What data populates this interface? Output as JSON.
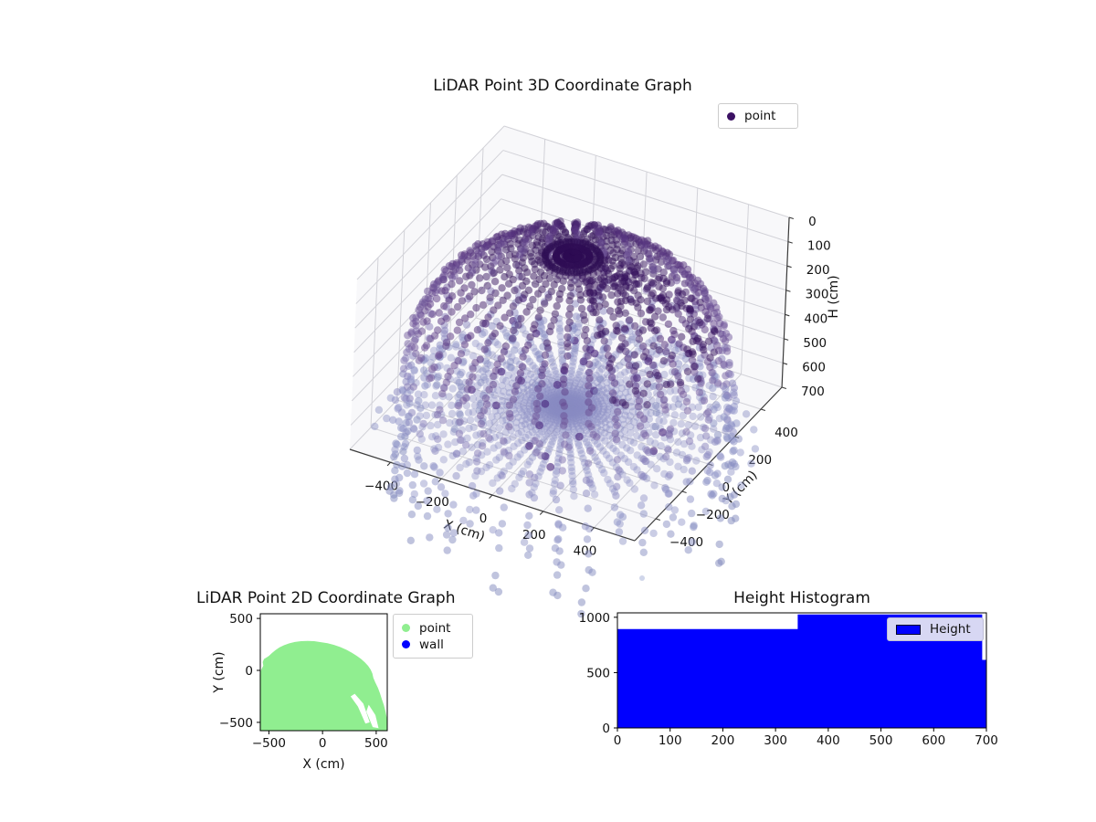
{
  "figure": {
    "background": "#ffffff"
  },
  "chart_data": [
    {
      "type": "scatter3d",
      "title": "LiDAR Point 3D Coordinate Graph",
      "xlabel": "X (cm)",
      "ylabel": "Y (cm)",
      "zlabel": "H (cm)",
      "xticks": [
        -400,
        -200,
        0,
        200,
        400
      ],
      "yticks": [
        400,
        200,
        0,
        -200,
        -400
      ],
      "zticks": [
        0,
        100,
        200,
        300,
        400,
        500,
        600,
        700
      ],
      "xlim": [
        -560,
        560
      ],
      "ylim": [
        -560,
        560
      ],
      "zlim": [
        0,
        700
      ],
      "zaxis_direction": "0 at top, 700 at bottom",
      "legend": [
        {
          "label": "point",
          "color": "#3b1163"
        }
      ],
      "grid": true,
      "pane_color": "#f4f4f6",
      "grid_color": "#d2d2d8",
      "cloud": {
        "description": "spherical LiDAR scan: dark dome cap on top, dotted wall meridian strips on sides, concentric floor rings with radial rays converging at center",
        "sphere_radius_cm": 560,
        "dome": {
          "phi_min_deg": 12,
          "phi_max_deg": 90,
          "phi_step_deg": 3,
          "azimuth_count": 36,
          "h_top": 30,
          "h_span": 440
        },
        "cap_extra_rings_deg": [
          80,
          84,
          88
        ],
        "walls": {
          "azimuth_count": 36,
          "rows": 12,
          "h_start": 380,
          "h_span": 590,
          "r_base": 552,
          "r_flare": 45
        },
        "floor": {
          "ring_count": 30,
          "azimuth_count": 48,
          "radius_exponent": 1.75,
          "plane_h": 650,
          "max_radius": 560
        },
        "outer_rays": {
          "azimuth_count": 36,
          "radii": [
            585,
            625,
            665
          ]
        },
        "outlier_count": 28,
        "colormap_h_rgb": [
          [
            30,
            [
              45,
              12,
              83
            ]
          ],
          [
            220,
            [
              84,
              48,
              125
            ]
          ],
          [
            400,
            [
              116,
              92,
              158
            ]
          ],
          [
            560,
            [
              133,
              125,
              185
            ]
          ],
          [
            700,
            [
              141,
              146,
              199
            ]
          ],
          [
            1050,
            [
              128,
              136,
              188
            ]
          ]
        ],
        "dark_patch_color": "#34105c",
        "alpha": {
          "dome": 0.5,
          "floor": 0.38,
          "walls": 0.5
        },
        "point_radius_px": 4.2
      }
    },
    {
      "type": "scatter2d",
      "title": "LiDAR Point 2D Coordinate Graph",
      "xlabel": "X (cm)",
      "ylabel": "Y (cm)",
      "xticks": [
        -500,
        0,
        500
      ],
      "yticks": [
        500,
        0,
        -500
      ],
      "xlim": [
        -580,
        603
      ],
      "ylim": [
        -580,
        545
      ],
      "legend": [
        {
          "label": "point",
          "color": "#90ee90"
        },
        {
          "label": "wall",
          "color": "#0000ff"
        }
      ],
      "point_color": "#90ee90",
      "blob_outline": [
        [
          -585,
          -580
        ],
        [
          -585,
          -40
        ],
        [
          -570,
          10
        ],
        [
          -552,
          45
        ],
        [
          -558,
          80
        ],
        [
          -545,
          110
        ],
        [
          -520,
          125
        ],
        [
          -500,
          140
        ],
        [
          -470,
          168
        ],
        [
          -438,
          196
        ],
        [
          -400,
          222
        ],
        [
          -358,
          243
        ],
        [
          -310,
          260
        ],
        [
          -258,
          273
        ],
        [
          -200,
          281
        ],
        [
          -140,
          284
        ],
        [
          -78,
          281
        ],
        [
          -16,
          272
        ],
        [
          46,
          261
        ],
        [
          108,
          245
        ],
        [
          166,
          224
        ],
        [
          222,
          199
        ],
        [
          272,
          171
        ],
        [
          318,
          141
        ],
        [
          358,
          111
        ],
        [
          394,
          78
        ],
        [
          424,
          44
        ],
        [
          448,
          8
        ],
        [
          464,
          -30
        ],
        [
          474,
          -72
        ],
        [
          492,
          -118
        ],
        [
          516,
          -168
        ],
        [
          536,
          -222
        ],
        [
          553,
          -278
        ],
        [
          571,
          -332
        ],
        [
          586,
          -392
        ],
        [
          598,
          -452
        ],
        [
          603,
          -580
        ]
      ],
      "notches": [
        [
          [
            300,
            -225
          ],
          [
            380,
            -320
          ],
          [
            440,
            -500
          ],
          [
            400,
            -512
          ],
          [
            330,
            -348
          ],
          [
            262,
            -250
          ]
        ],
        [
          [
            430,
            -330
          ],
          [
            492,
            -430
          ],
          [
            522,
            -556
          ],
          [
            468,
            -546
          ],
          [
            408,
            -396
          ]
        ]
      ]
    },
    {
      "type": "histogram",
      "title": "Height Histogram",
      "xticks": [
        0,
        100,
        200,
        300,
        400,
        500,
        600,
        700
      ],
      "yticks": [
        0,
        500,
        1000
      ],
      "xlim": [
        0,
        700
      ],
      "ylim": [
        0,
        1040
      ],
      "legend": [
        {
          "label": "Height",
          "color": "#0000ff"
        }
      ],
      "bar_color": "#0000ff",
      "segments": [
        {
          "x0": 0,
          "x1": 342,
          "count": 893
        },
        {
          "x0": 342,
          "x1": 692,
          "count": 1025
        },
        {
          "x0": 692,
          "x1": 700,
          "count": 615
        }
      ]
    }
  ]
}
